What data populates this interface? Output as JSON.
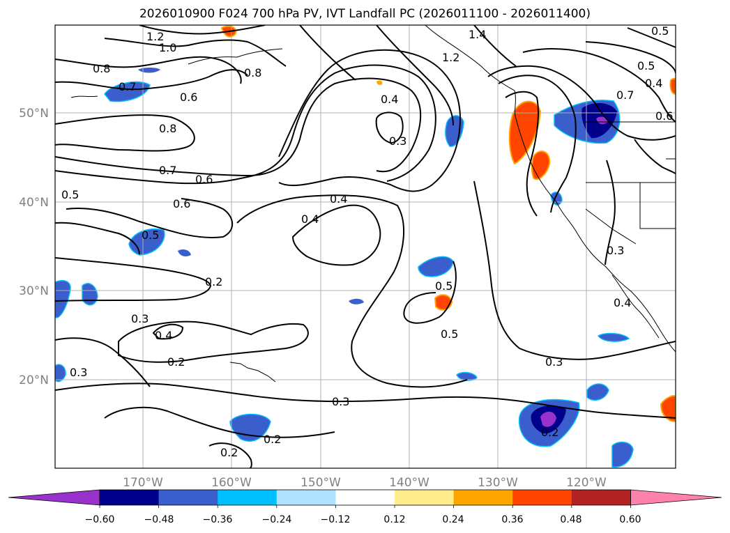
{
  "title": "2026010900 F024 700 hPa PV, IVT Landfall PC (2026011100 - 2026011400)",
  "map": {
    "lon_ticks": [
      "170°W",
      "160°W",
      "150°W",
      "140°W",
      "130°W",
      "120°W"
    ],
    "lat_ticks": [
      "50°N",
      "40°N",
      "30°N",
      "20°N"
    ],
    "gridlines": true
  },
  "contour_labels": [
    "1.2",
    "1.0",
    "0.8",
    "0.7",
    "0.6",
    "0.8",
    "0.4",
    "0.3",
    "0.8",
    "0.7",
    "0.6",
    "0.6",
    "0.5",
    "0.5",
    "0.4",
    "0.4",
    "0.2",
    "0.3",
    "0.4",
    "0.2",
    "0.3",
    "0.5",
    "0.5",
    "0.3",
    "0.3",
    "0.2",
    "0.2",
    "0.2",
    "0.4",
    "0.3",
    "0.4",
    "0.7",
    "0.5",
    "0.6",
    "1.4",
    "1.2",
    "0.5"
  ],
  "colorbar": {
    "tick_labels": [
      "−0.60",
      "−0.48",
      "−0.36",
      "−0.24",
      "−0.12",
      "0.12",
      "0.24",
      "0.36",
      "0.48",
      "0.60"
    ],
    "colors": [
      "#9932cc",
      "#00008b",
      "#3a5fcd",
      "#00bfff",
      "#b0e2ff",
      "#ffffff",
      "#ffec8b",
      "#ffa500",
      "#ff4500",
      "#b22222",
      "#ff82ab"
    ]
  }
}
